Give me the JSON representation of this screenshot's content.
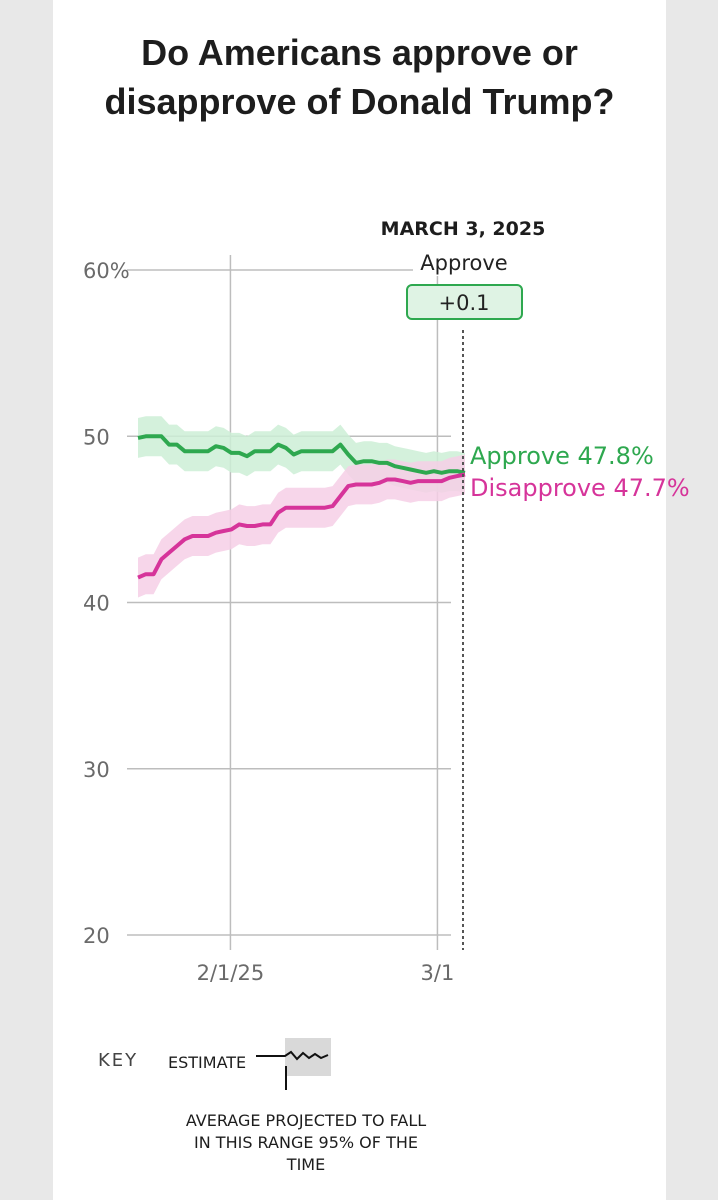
{
  "title": "Do Americans approve or disapprove of Donald Trump?",
  "hover_date": "MARCH 3, 2025",
  "tooltip": {
    "label": "Approve",
    "value": "+0.1"
  },
  "end_labels": {
    "approve": "Approve 47.8%",
    "disapprove": "Disapprove 47.7%"
  },
  "y_ticks": [
    "60%",
    "50",
    "40",
    "30",
    "20"
  ],
  "x_ticks": [
    "2/1/25",
    "3/1"
  ],
  "key": {
    "heading": "KEY",
    "estimate": "ESTIMATE",
    "note_lines": [
      "AVERAGE PROJECTED TO FALL",
      "IN THIS RANGE 95% OF THE",
      "TIME"
    ]
  },
  "colors": {
    "approve": "#2ea84f",
    "disapprove": "#d6349a",
    "approve_band": "#cdeed6",
    "disapprove_band": "#f6cfe6"
  },
  "chart_data": {
    "type": "line",
    "ylim": [
      20,
      60
    ],
    "yticks": [
      20,
      30,
      40,
      50,
      60
    ],
    "x_range_days": [
      0,
      42
    ],
    "x_tick_days": [
      12,
      40
    ],
    "x": [
      0,
      1,
      2,
      3,
      4,
      5,
      6,
      7,
      8,
      9,
      10,
      11,
      12,
      13,
      14,
      15,
      16,
      17,
      18,
      19,
      20,
      21,
      22,
      23,
      24,
      25,
      26,
      27,
      28,
      29,
      30,
      31,
      32,
      33,
      34,
      35,
      36,
      37,
      38,
      39,
      40,
      41,
      42
    ],
    "series": [
      {
        "name": "Approve",
        "values": [
          49.9,
          50.0,
          50.0,
          50.0,
          49.5,
          49.5,
          49.1,
          49.1,
          49.1,
          49.1,
          49.4,
          49.3,
          49.0,
          49.0,
          48.8,
          49.1,
          49.1,
          49.1,
          49.5,
          49.3,
          48.9,
          49.1,
          49.1,
          49.1,
          49.1,
          49.1,
          49.5,
          48.9,
          48.4,
          48.5,
          48.5,
          48.4,
          48.4,
          48.2,
          48.1,
          48.0,
          47.9,
          47.8,
          47.9,
          47.8,
          47.9,
          47.9,
          47.8
        ],
        "band_halfwidth": 1.2
      },
      {
        "name": "Disapprove",
        "values": [
          41.5,
          41.7,
          41.7,
          42.6,
          43.0,
          43.4,
          43.8,
          44.0,
          44.0,
          44.0,
          44.2,
          44.3,
          44.4,
          44.7,
          44.6,
          44.6,
          44.7,
          44.7,
          45.4,
          45.7,
          45.7,
          45.7,
          45.7,
          45.7,
          45.7,
          45.8,
          46.4,
          47.0,
          47.1,
          47.1,
          47.1,
          47.2,
          47.4,
          47.4,
          47.3,
          47.2,
          47.3,
          47.3,
          47.3,
          47.3,
          47.5,
          47.6,
          47.7
        ],
        "band_halfwidth": 1.2
      }
    ]
  }
}
